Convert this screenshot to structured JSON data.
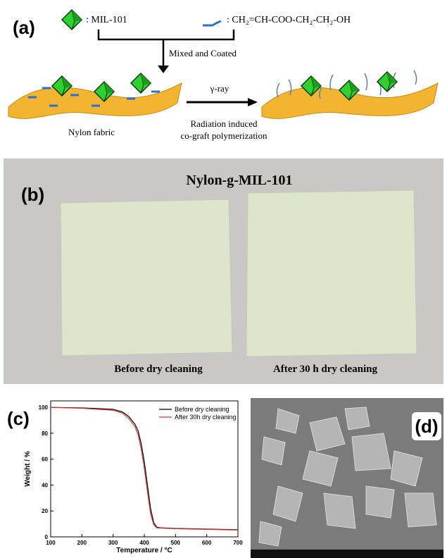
{
  "panel_a": {
    "label": "(a)",
    "legend_1": ": MIL-101",
    "legend_2": ": CH₂=CH-COO-CH₂-CH₂-OH",
    "step_1": "Mixed and Coated",
    "arrow_label": "γ-ray",
    "step_2_line_1": "Radiation induced",
    "step_2_line_2": "co-graft polymerization",
    "substrate": "Nylon fabric"
  },
  "panel_b": {
    "label": "(b)",
    "title": "Nylon-g-MIL-101",
    "left_caption": "Before dry cleaning",
    "right_caption": "After 30 h dry cleaning"
  },
  "chart_data": {
    "type": "line",
    "label": "(c)",
    "xlabel": "Temperature / °C",
    "ylabel": "Weight / %",
    "x": [
      100,
      200,
      300,
      330,
      350,
      370,
      380,
      390,
      400,
      410,
      420,
      430,
      440,
      450,
      500,
      600,
      700
    ],
    "series": [
      {
        "name": "Before dry cleaning",
        "color": "#000000",
        "values": [
          100,
          99.6,
          98.5,
          96.5,
          93,
          87,
          82,
          72,
          58,
          40,
          22,
          11,
          7.5,
          7,
          6.5,
          6,
          5.5
        ]
      },
      {
        "name": "After 30h dry cleaning",
        "color": "#e03030",
        "values": [
          100,
          99.3,
          97.8,
          95.5,
          91.5,
          85,
          79,
          68,
          53,
          35,
          18,
          9.5,
          7,
          6.8,
          6.3,
          5.8,
          5.3
        ]
      }
    ],
    "xlim": [
      100,
      700
    ],
    "ylim": [
      0,
      105
    ],
    "xticks": [
      100,
      200,
      300,
      400,
      500,
      600,
      700
    ],
    "yticks": [
      0,
      20,
      40,
      60,
      80,
      100
    ],
    "legend": "upper right"
  },
  "panel_d": {
    "label": "(d)"
  }
}
